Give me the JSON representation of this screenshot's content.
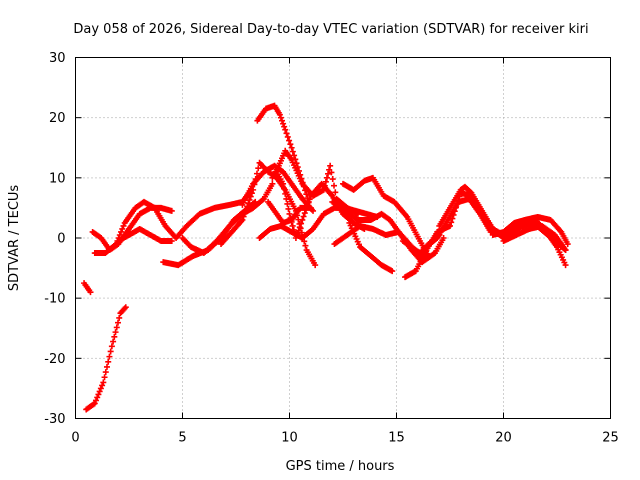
{
  "chart_data": {
    "type": "scatter",
    "title": "Day 058 of 2026, Sidereal Day-to-day VTEC variation (SDTVAR) for receiver kiri",
    "xlabel": "GPS time / hours",
    "ylabel": "SDTVAR / TECUs",
    "xlim": [
      0,
      25
    ],
    "ylim": [
      -30,
      30
    ],
    "xticks": [
      0,
      5,
      10,
      15,
      20,
      25
    ],
    "yticks": [
      -30,
      -20,
      -10,
      0,
      10,
      20,
      30
    ],
    "xtick_labels": [
      "0",
      "5",
      "10",
      "15",
      "20",
      "25"
    ],
    "ytick_labels": [
      "-30",
      "-20",
      "-10",
      "0",
      "10",
      "20",
      "30"
    ],
    "grid": true,
    "marker": "+",
    "color": "#ff0000",
    "series": [
      {
        "name": "track-1",
        "points": [
          [
            0.4,
            -7.5
          ],
          [
            0.7,
            -9
          ]
        ]
      },
      {
        "name": "track-2",
        "points": [
          [
            0.5,
            -28.5
          ],
          [
            0.9,
            -27.5
          ],
          [
            1.3,
            -24
          ],
          [
            1.7,
            -18
          ],
          [
            2.1,
            -12.5
          ],
          [
            2.35,
            -11.5
          ]
        ]
      },
      {
        "name": "track-3",
        "points": [
          [
            0.8,
            1
          ],
          [
            1.2,
            0
          ],
          [
            1.6,
            -2
          ],
          [
            2.0,
            -1
          ],
          [
            2.5,
            1.5
          ],
          [
            3.0,
            4
          ],
          [
            3.5,
            5
          ],
          [
            4.0,
            5
          ],
          [
            4.5,
            4.5
          ]
        ]
      },
      {
        "name": "track-4",
        "points": [
          [
            0.9,
            -2.5
          ],
          [
            1.4,
            -2.5
          ],
          [
            1.9,
            -1
          ],
          [
            2.3,
            2.5
          ],
          [
            2.8,
            5
          ],
          [
            3.2,
            6
          ],
          [
            3.7,
            5
          ],
          [
            4.2,
            2
          ],
          [
            4.7,
            0
          ],
          [
            5.2,
            2
          ],
          [
            5.8,
            4
          ],
          [
            6.5,
            5
          ],
          [
            7.2,
            5.5
          ],
          [
            7.8,
            6
          ],
          [
            8.2,
            8
          ]
        ]
      },
      {
        "name": "track-5",
        "points": [
          [
            2.0,
            -0.5
          ],
          [
            2.5,
            0.5
          ],
          [
            3.0,
            1.5
          ],
          [
            3.5,
            0.5
          ],
          [
            4.0,
            -0.5
          ],
          [
            4.5,
            -0.5
          ]
        ]
      },
      {
        "name": "track-6",
        "points": [
          [
            4.1,
            -4
          ],
          [
            4.8,
            -4.5
          ],
          [
            5.5,
            -3
          ],
          [
            6.2,
            -2
          ],
          [
            6.8,
            0
          ],
          [
            7.4,
            3
          ],
          [
            7.9,
            4.5
          ],
          [
            8.4,
            6
          ]
        ]
      },
      {
        "name": "track-7",
        "points": [
          [
            5.0,
            0
          ],
          [
            5.4,
            -1.5
          ],
          [
            6.0,
            -2.5
          ],
          [
            6.6,
            -0.5
          ],
          [
            7.2,
            2
          ],
          [
            7.8,
            4
          ],
          [
            8.3,
            5
          ],
          [
            8.8,
            6.5
          ],
          [
            9.2,
            9
          ]
        ]
      },
      {
        "name": "track-8",
        "points": [
          [
            6.8,
            -1
          ],
          [
            7.3,
            1
          ],
          [
            7.8,
            3
          ],
          [
            8.3,
            8
          ],
          [
            8.6,
            12.5
          ],
          [
            9.0,
            11
          ],
          [
            9.4,
            10
          ],
          [
            9.8,
            8
          ],
          [
            10.3,
            4.5
          ],
          [
            10.8,
            -2
          ],
          [
            11.2,
            -4.5
          ]
        ]
      },
      {
        "name": "track-9",
        "points": [
          [
            7.8,
            5.5
          ],
          [
            8.3,
            9
          ],
          [
            8.8,
            11
          ],
          [
            9.3,
            12
          ],
          [
            9.7,
            11
          ],
          [
            10.1,
            9
          ],
          [
            10.6,
            6.5
          ],
          [
            11.1,
            4.5
          ]
        ]
      },
      {
        "name": "track-10",
        "points": [
          [
            8.5,
            19.5
          ],
          [
            8.9,
            21.5
          ],
          [
            9.3,
            22
          ],
          [
            9.55,
            20.5
          ],
          [
            9.8,
            18
          ],
          [
            10.1,
            15
          ],
          [
            10.5,
            10.5
          ],
          [
            10.9,
            6
          ]
        ]
      },
      {
        "name": "track-11",
        "points": [
          [
            9.2,
            10
          ],
          [
            9.5,
            12
          ],
          [
            9.8,
            14.5
          ],
          [
            10.1,
            13
          ],
          [
            10.6,
            9
          ],
          [
            11.1,
            7
          ],
          [
            11.6,
            8
          ],
          [
            11.9,
            12
          ],
          [
            12.2,
            6.5
          ],
          [
            12.7,
            5
          ],
          [
            13.2,
            4
          ]
        ]
      },
      {
        "name": "track-12",
        "points": [
          [
            9.4,
            11
          ],
          [
            9.7,
            9
          ],
          [
            10.0,
            4
          ],
          [
            10.3,
            0
          ],
          [
            10.6,
            3
          ],
          [
            11.0,
            7
          ],
          [
            11.5,
            9
          ],
          [
            12.0,
            7
          ],
          [
            12.5,
            4
          ],
          [
            13.0,
            2.5
          ],
          [
            13.5,
            1.5
          ]
        ]
      },
      {
        "name": "track-13",
        "points": [
          [
            9.0,
            6
          ],
          [
            9.4,
            4
          ],
          [
            9.7,
            2.5
          ],
          [
            10.1,
            3
          ],
          [
            10.5,
            5
          ],
          [
            11.0,
            5
          ]
        ]
      },
      {
        "name": "track-14",
        "points": [
          [
            8.6,
            0
          ],
          [
            9.1,
            1.5
          ],
          [
            9.6,
            2
          ],
          [
            10.1,
            1
          ],
          [
            10.6,
            0
          ],
          [
            11.1,
            1.5
          ],
          [
            11.6,
            4
          ],
          [
            12.1,
            5
          ],
          [
            12.6,
            5
          ],
          [
            13.1,
            4.5
          ],
          [
            13.6,
            4
          ],
          [
            14.1,
            3.5
          ]
        ]
      },
      {
        "name": "track-15",
        "points": [
          [
            12.5,
            9
          ],
          [
            13.0,
            8
          ],
          [
            13.5,
            9.5
          ],
          [
            13.9,
            10
          ],
          [
            14.4,
            7
          ],
          [
            14.9,
            6
          ],
          [
            15.5,
            3.5
          ],
          [
            16.1,
            -0.5
          ],
          [
            16.5,
            -3
          ]
        ]
      },
      {
        "name": "track-16",
        "points": [
          [
            12.1,
            -1
          ],
          [
            12.7,
            0.5
          ],
          [
            13.3,
            2
          ],
          [
            13.9,
            1.5
          ],
          [
            14.5,
            0.5
          ],
          [
            15.1,
            1
          ],
          [
            15.7,
            -2
          ],
          [
            16.2,
            -4
          ],
          [
            16.8,
            -2.5
          ],
          [
            17.2,
            0
          ]
        ]
      },
      {
        "name": "track-17",
        "points": [
          [
            12.0,
            6
          ],
          [
            12.6,
            4.5
          ],
          [
            13.2,
            3
          ],
          [
            13.8,
            3
          ],
          [
            14.3,
            4
          ],
          [
            14.7,
            3
          ],
          [
            15.1,
            1
          ],
          [
            15.6,
            -1
          ],
          [
            16.1,
            -3
          ],
          [
            16.5,
            -3
          ]
        ]
      },
      {
        "name": "track-18",
        "points": [
          [
            12.8,
            2.5
          ],
          [
            13.3,
            -1.5
          ],
          [
            13.8,
            -3
          ],
          [
            14.3,
            -4.5
          ],
          [
            14.8,
            -5.5
          ]
        ]
      },
      {
        "name": "track-19",
        "points": [
          [
            15.3,
            -0.5
          ],
          [
            15.7,
            -1.5
          ],
          [
            16.1,
            -2.5
          ],
          [
            16.5,
            -1
          ],
          [
            17.0,
            0.5
          ]
        ]
      },
      {
        "name": "track-20",
        "points": [
          [
            15.4,
            -6.5
          ],
          [
            15.9,
            -5.5
          ],
          [
            16.4,
            -2
          ],
          [
            16.9,
            1
          ],
          [
            17.5,
            2
          ],
          [
            18.0,
            7.5
          ],
          [
            18.5,
            7
          ],
          [
            19.0,
            4
          ],
          [
            19.5,
            1.5
          ],
          [
            20.0,
            0.5
          ]
        ]
      },
      {
        "name": "track-21",
        "points": [
          [
            16.4,
            -1.5
          ],
          [
            16.9,
            0
          ],
          [
            17.4,
            3
          ],
          [
            17.9,
            6
          ],
          [
            18.4,
            6.5
          ],
          [
            18.9,
            4
          ],
          [
            19.4,
            1
          ],
          [
            19.9,
            0.5
          ],
          [
            20.4,
            1
          ],
          [
            20.9,
            2
          ],
          [
            21.4,
            2.5
          ],
          [
            21.9,
            1
          ],
          [
            22.4,
            -0.5
          ],
          [
            22.9,
            -2
          ]
        ]
      },
      {
        "name": "track-22",
        "points": [
          [
            17.0,
            2
          ],
          [
            17.5,
            5
          ],
          [
            18.0,
            8
          ],
          [
            18.2,
            8.5
          ],
          [
            18.5,
            7.5
          ],
          [
            19.0,
            4.5
          ],
          [
            19.5,
            1.5
          ],
          [
            20.0,
            0
          ],
          [
            20.5,
            1.5
          ],
          [
            21.0,
            3
          ],
          [
            21.5,
            3
          ],
          [
            22.0,
            1
          ],
          [
            22.5,
            -1.5
          ],
          [
            22.9,
            -4.5
          ]
        ]
      },
      {
        "name": "track-23",
        "points": [
          [
            19.5,
            0.5
          ],
          [
            20.0,
            1
          ],
          [
            20.5,
            2.5
          ],
          [
            21.0,
            3
          ],
          [
            21.6,
            3.5
          ],
          [
            22.2,
            3
          ],
          [
            22.7,
            1
          ],
          [
            23.0,
            -1
          ]
        ]
      },
      {
        "name": "track-24",
        "points": [
          [
            20.0,
            -0.5
          ],
          [
            20.6,
            0.5
          ],
          [
            21.2,
            1.5
          ],
          [
            21.8,
            2
          ],
          [
            22.4,
            0.5
          ],
          [
            22.9,
            -2
          ]
        ]
      }
    ]
  }
}
